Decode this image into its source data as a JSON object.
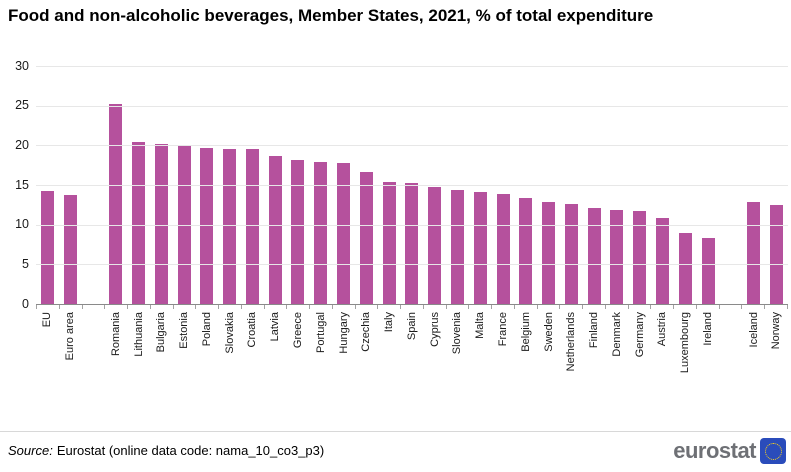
{
  "chart_data": {
    "type": "bar",
    "title": "Food and non-alcoholic beverages, Member States, 2021, % of total expenditure",
    "xlabel": "",
    "ylabel": "% of total expenditure",
    "categories": [
      "EU",
      "Euro area",
      "Romania",
      "Lithuania",
      "Bulgaria",
      "Estonia",
      "Poland",
      "Slovakia",
      "Croatia",
      "Latvia",
      "Greece",
      "Portugal",
      "Hungary",
      "Czechia",
      "Italy",
      "Spain",
      "Cyprus",
      "Slovenia",
      "Malta",
      "France",
      "Belgium",
      "Sweden",
      "Netherlands",
      "Finland",
      "Denmark",
      "Germany",
      "Austria",
      "Luxembourg",
      "Ireland",
      "Iceland",
      "Norway"
    ],
    "values": [
      14.3,
      13.8,
      25.2,
      20.4,
      20.2,
      19.9,
      19.7,
      19.6,
      19.5,
      18.7,
      18.1,
      17.9,
      17.8,
      16.6,
      15.4,
      15.2,
      14.7,
      14.4,
      14.1,
      13.9,
      13.4,
      12.8,
      12.6,
      12.1,
      11.8,
      11.7,
      10.9,
      8.9,
      8.3,
      12.9,
      12.5
    ],
    "gap_after_indices": [
      1,
      28
    ],
    "ylim": [
      0,
      30
    ],
    "yticks": [
      0,
      5,
      10,
      15,
      20,
      25,
      30
    ],
    "grid": true,
    "legend": "none",
    "bar_color": "#b5519d"
  },
  "footer": {
    "source_prefix": "Source:",
    "source_rest": "Eurostat (online data code: nama_10_co3_p3)",
    "logo_text": "eurostat",
    "logo_text_color": "#6e7075",
    "logo_square_color": "#2a4cbb",
    "logo_star_color": "#ffd617"
  }
}
